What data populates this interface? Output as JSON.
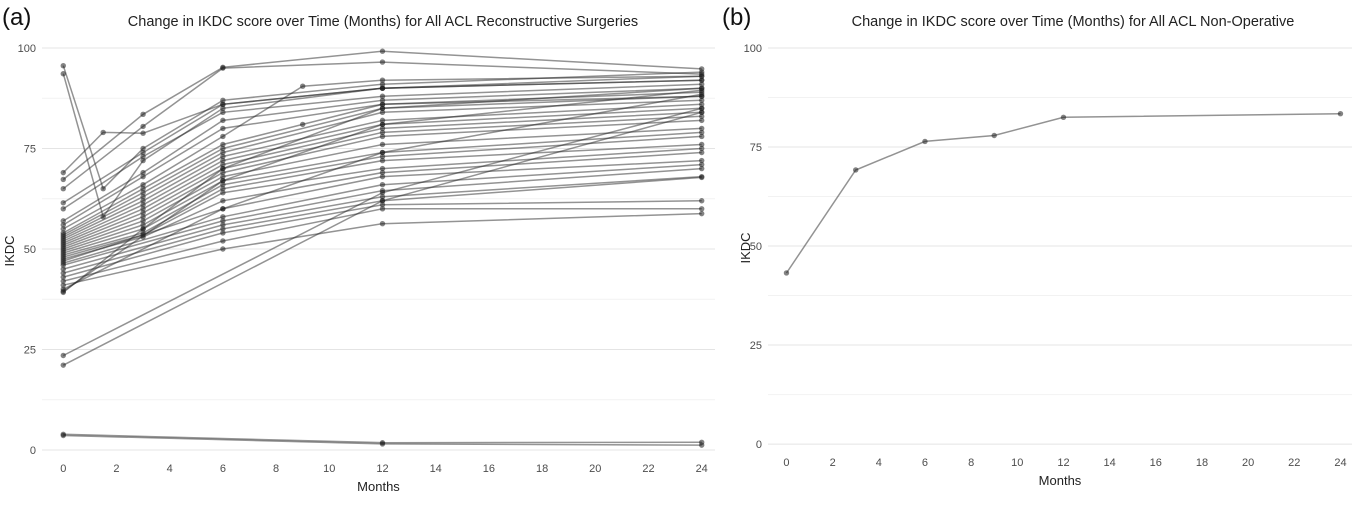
{
  "panels": [
    {
      "letter": "(a)"
    },
    {
      "letter": "(b)"
    }
  ],
  "chart_data": [
    {
      "type": "line",
      "title": "Change in IKDC score over Time (Months) for All ACL Reconstructive Surgeries",
      "xlabel": "Months",
      "ylabel": "IKDC",
      "xlim": [
        -0.8,
        24.5
      ],
      "ylim": [
        -2,
        101
      ],
      "xticks": [
        0,
        2,
        4,
        6,
        8,
        10,
        12,
        14,
        16,
        18,
        20,
        22,
        24
      ],
      "yticks": [
        0,
        25,
        50,
        75,
        100
      ],
      "grid": true,
      "legend": "none",
      "series": [
        {
          "x": [
            0,
            1.5,
            3,
            6,
            12,
            24
          ],
          "y": [
            95.6,
            65,
            75,
            87,
            91,
            94
          ]
        },
        {
          "x": [
            0,
            1.5,
            3,
            6,
            12,
            24
          ],
          "y": [
            93.6,
            58,
            72,
            85,
            90,
            93
          ]
        },
        {
          "x": [
            0,
            1.5,
            3,
            6,
            12,
            24
          ],
          "y": [
            69,
            79,
            78.8,
            86,
            90,
            92
          ]
        },
        {
          "x": [
            0,
            3,
            6,
            12,
            24
          ],
          "y": [
            67.3,
            83.5,
            95.2,
            99.2,
            94.8
          ]
        },
        {
          "x": [
            0,
            3,
            6,
            12,
            24
          ],
          "y": [
            65,
            80.5,
            95,
            96.5,
            93.5
          ]
        },
        {
          "x": [
            0,
            3,
            6,
            12,
            24
          ],
          "y": [
            61.5,
            74,
            86,
            90,
            92
          ]
        },
        {
          "x": [
            0,
            3,
            6,
            12,
            24
          ],
          "y": [
            60,
            73,
            84,
            88,
            91
          ]
        },
        {
          "x": [
            0,
            3,
            6,
            12,
            24
          ],
          "y": [
            57,
            69,
            82,
            87,
            90
          ]
        },
        {
          "x": [
            0,
            3,
            6,
            12,
            24
          ],
          "y": [
            56,
            68,
            80,
            86,
            89
          ]
        },
        {
          "x": [
            0,
            3,
            6,
            9,
            12,
            24
          ],
          "y": [
            55,
            66,
            78,
            90.5,
            92,
            93
          ]
        },
        {
          "x": [
            0,
            3,
            6,
            9,
            12,
            24
          ],
          "y": [
            54,
            65,
            76,
            81,
            86,
            88
          ]
        },
        {
          "x": [
            0,
            3,
            6,
            12,
            24
          ],
          "y": [
            53.5,
            64,
            75,
            85,
            88
          ]
        },
        {
          "x": [
            0,
            3,
            6,
            12,
            24
          ],
          "y": [
            53,
            63,
            74,
            84,
            87
          ]
        },
        {
          "x": [
            0,
            3,
            6,
            12,
            24
          ],
          "y": [
            52.5,
            62,
            73,
            82,
            86
          ]
        },
        {
          "x": [
            0,
            3,
            6,
            12,
            24
          ],
          "y": [
            52,
            61,
            72,
            81,
            85
          ]
        },
        {
          "x": [
            0,
            3,
            6,
            12,
            24
          ],
          "y": [
            51.5,
            60,
            71,
            80,
            84
          ]
        },
        {
          "x": [
            0,
            3,
            6,
            12,
            24
          ],
          "y": [
            51,
            59,
            70,
            79,
            83
          ]
        },
        {
          "x": [
            0,
            3,
            6,
            12,
            24
          ],
          "y": [
            50.5,
            58,
            69,
            78,
            82
          ]
        },
        {
          "x": [
            0,
            3,
            6,
            12,
            24
          ],
          "y": [
            50,
            57,
            68,
            76,
            80
          ]
        },
        {
          "x": [
            0,
            3,
            6,
            12,
            24
          ],
          "y": [
            49.5,
            56,
            67,
            74,
            79
          ]
        },
        {
          "x": [
            0,
            3,
            6,
            12,
            24
          ],
          "y": [
            49,
            55,
            66,
            73,
            78
          ]
        },
        {
          "x": [
            0,
            3,
            6,
            12,
            24
          ],
          "y": [
            48.5,
            54,
            65,
            72,
            76
          ]
        },
        {
          "x": [
            0,
            3,
            6,
            12,
            24
          ],
          "y": [
            48,
            53.5,
            64,
            70,
            75
          ]
        },
        {
          "x": [
            0,
            3,
            6,
            12,
            24
          ],
          "y": [
            47.5,
            53,
            62,
            69,
            74
          ]
        },
        {
          "x": [
            0,
            6,
            12,
            24
          ],
          "y": [
            47,
            60,
            68,
            72
          ]
        },
        {
          "x": [
            0,
            6,
            12,
            24
          ],
          "y": [
            46.5,
            58,
            66,
            71
          ]
        },
        {
          "x": [
            0,
            6,
            12,
            24
          ],
          "y": [
            46,
            57,
            64.5,
            70
          ]
        },
        {
          "x": [
            0,
            6,
            12,
            24
          ],
          "y": [
            45,
            56,
            63,
            68
          ]
        },
        {
          "x": [
            0,
            6,
            12,
            24
          ],
          "y": [
            44,
            55,
            62,
            67.8
          ]
        },
        {
          "x": [
            0,
            6,
            12,
            24
          ],
          "y": [
            43,
            54,
            61,
            62
          ]
        },
        {
          "x": [
            0,
            6,
            12,
            24
          ],
          "y": [
            42,
            52,
            60,
            60
          ]
        },
        {
          "x": [
            0,
            6,
            12,
            24
          ],
          "y": [
            41,
            50,
            56.3,
            58.8
          ]
        },
        {
          "x": [
            0,
            6,
            12,
            24
          ],
          "y": [
            40,
            60,
            74,
            88.5
          ]
        },
        {
          "x": [
            0,
            6,
            12,
            24
          ],
          "y": [
            39.5,
            67,
            81,
            89.5
          ]
        },
        {
          "x": [
            0,
            3,
            6,
            12,
            24
          ],
          "y": [
            39.2,
            55,
            70,
            85,
            90
          ]
        },
        {
          "x": [
            0,
            12,
            24
          ],
          "y": [
            23.5,
            64,
            85
          ]
        },
        {
          "x": [
            0,
            12,
            24
          ],
          "y": [
            21.1,
            62,
            84
          ]
        },
        {
          "x": [
            0,
            12,
            24
          ],
          "y": [
            3.9,
            1.8,
            1.9
          ]
        },
        {
          "x": [
            0,
            12,
            24
          ],
          "y": [
            3.6,
            1.5,
            1.2
          ]
        }
      ]
    },
    {
      "type": "line",
      "title": "Change in IKDC score over Time (Months) for All ACL Non-Operative",
      "xlabel": "Months",
      "ylabel": "IKDC",
      "xlim": [
        -0.8,
        24.5
      ],
      "ylim": [
        -2,
        101
      ],
      "xticks": [
        0,
        2,
        4,
        6,
        8,
        10,
        12,
        14,
        16,
        18,
        20,
        22,
        24
      ],
      "yticks": [
        0,
        25,
        50,
        75,
        100
      ],
      "grid": true,
      "legend": "none",
      "series": [
        {
          "x": [
            0,
            3,
            6,
            9,
            12,
            24
          ],
          "y": [
            43.2,
            69.2,
            76.4,
            77.9,
            82.5,
            83.4
          ]
        }
      ]
    }
  ]
}
